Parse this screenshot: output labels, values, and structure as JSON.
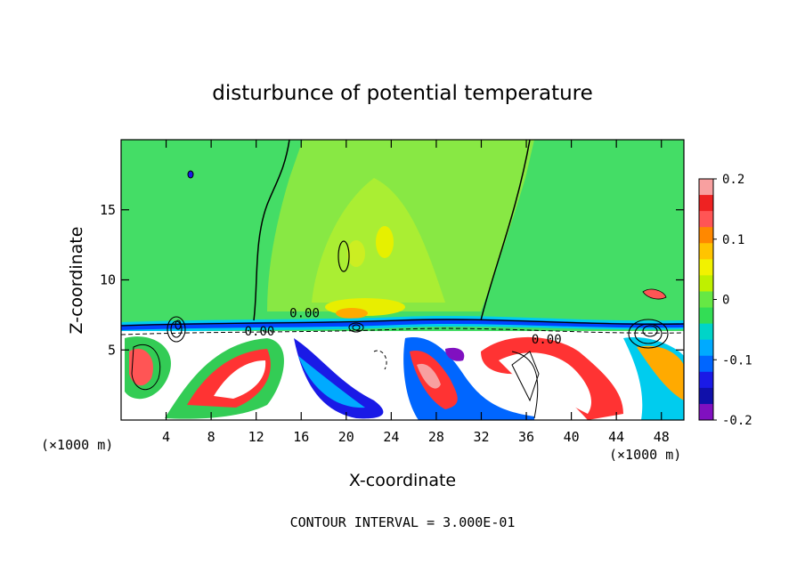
{
  "chart_data": {
    "type": "heatmap",
    "title": "disturbunce of potential temperature",
    "xlabel": "X-coordinate",
    "ylabel": "Z-coordinate",
    "x_unit_label": "(×1000 m)",
    "x_unit_label_right": "(×1000 m)",
    "footer": "CONTOUR INTERVAL = 3.000E-01",
    "xlim": [
      0,
      50
    ],
    "ylim": [
      0,
      20
    ],
    "x_ticks": [
      4,
      8,
      12,
      16,
      20,
      24,
      28,
      32,
      36,
      40,
      44,
      48
    ],
    "y_ticks": [
      5,
      10,
      15
    ],
    "contour_labels": [
      {
        "text": "0.00",
        "x": 16.3,
        "y": 7.6
      },
      {
        "text": "0.00",
        "x": 12.3,
        "y": 6.3
      },
      {
        "text": "0.00",
        "x": 37.8,
        "y": 5.7
      }
    ],
    "colorbar": {
      "min": -0.2,
      "max": 0.2,
      "tick_labels": [
        "0.2",
        "0.1",
        "0",
        "-0.1",
        "-0.2"
      ],
      "tick_values": [
        0.2,
        0.1,
        0,
        -0.1,
        -0.2
      ],
      "colors": [
        "#f8a0a0",
        "#ee2222",
        "#ff5555",
        "#ff8800",
        "#ffc400",
        "#f2f200",
        "#bff000",
        "#66e844",
        "#33dd55",
        "#00d4c8",
        "#00aaff",
        "#0066ff",
        "#1a1ae6",
        "#1010aa",
        "#8010c0"
      ]
    },
    "field_colors": {
      "upper_field": "#44dd66",
      "upper_plume": "#99ee33",
      "tropopause_band": "#0044ff",
      "lower_white": "#ffffff"
    }
  }
}
